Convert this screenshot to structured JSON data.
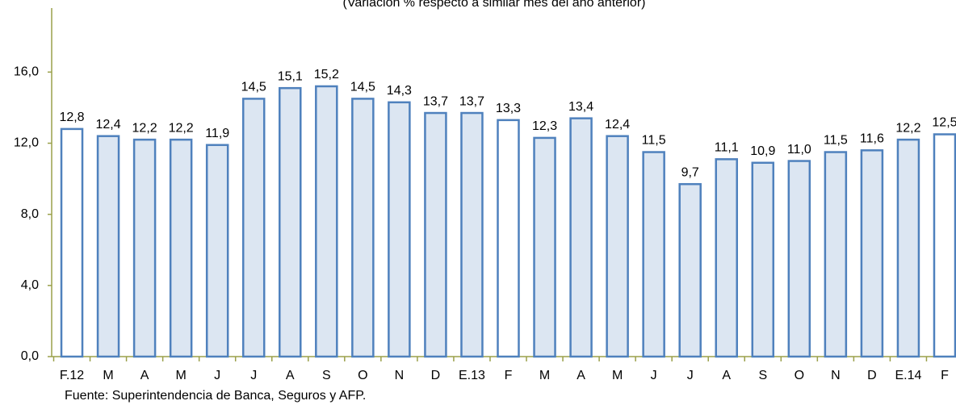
{
  "chart_data": {
    "type": "bar",
    "subtitle": "(Variación % respecto a similar mes del año anterior)",
    "source": "Fuente: Superintendencia de Banca, Seguros y AFP.",
    "categories": [
      "F.12",
      "M",
      "A",
      "M",
      "J",
      "J",
      "A",
      "S",
      "O",
      "N",
      "D",
      "E.13",
      "F",
      "M",
      "A",
      "M",
      "J",
      "J",
      "A",
      "S",
      "O",
      "N",
      "D",
      "E.14",
      "F"
    ],
    "values": [
      12.8,
      12.4,
      12.2,
      12.2,
      11.9,
      14.5,
      15.1,
      15.2,
      14.5,
      14.3,
      13.7,
      13.7,
      13.3,
      12.3,
      13.4,
      12.4,
      11.5,
      9.7,
      11.1,
      10.9,
      11.0,
      11.5,
      11.6,
      12.2,
      12.5
    ],
    "value_labels": [
      "12,8",
      "12,4",
      "12,2",
      "12,2",
      "11,9",
      "14,5",
      "15,1",
      "15,2",
      "14,5",
      "14,3",
      "13,7",
      "13,7",
      "13,3",
      "12,3",
      "13,4",
      "12,4",
      "11,5",
      "9,7",
      "11,1",
      "10,9",
      "11,0",
      "11,5",
      "11,6",
      "12,2",
      "12,5"
    ],
    "colors": [
      "#ffffff",
      "#dce6f2",
      "#dce6f2",
      "#dce6f2",
      "#dce6f2",
      "#dce6f2",
      "#dce6f2",
      "#dce6f2",
      "#dce6f2",
      "#dce6f2",
      "#dce6f2",
      "#dce6f2",
      "#ffffff",
      "#dce6f2",
      "#dce6f2",
      "#dce6f2",
      "#dce6f2",
      "#dce6f2",
      "#dce6f2",
      "#dce6f2",
      "#dce6f2",
      "#dce6f2",
      "#dce6f2",
      "#dce6f2",
      "#ffffff"
    ],
    "edge_color": "#4f81bd",
    "ylim": [
      0,
      19.6
    ],
    "yticks": [
      {
        "value": 0,
        "label": "0,0"
      },
      {
        "value": 4,
        "label": "4,0"
      },
      {
        "value": 8,
        "label": "8,0"
      },
      {
        "value": 12,
        "label": "12,0"
      },
      {
        "value": 16,
        "label": "16,0"
      }
    ],
    "grid": false
  }
}
